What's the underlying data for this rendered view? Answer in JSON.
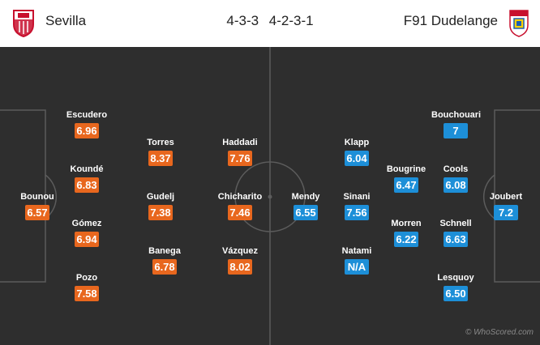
{
  "header": {
    "home_team": "Sevilla",
    "home_formation": "4-3-3",
    "away_formation": "4-2-3-1",
    "away_team": "F91 Dudelange"
  },
  "home_players": [
    {
      "name": "Escudero",
      "rating": "6.96"
    },
    {
      "name": "Koundé",
      "rating": "6.83"
    },
    {
      "name": "Bounou",
      "rating": "6.57"
    },
    {
      "name": "Gómez",
      "rating": "6.94"
    },
    {
      "name": "Pozo",
      "rating": "7.58"
    },
    {
      "name": "Torres",
      "rating": "8.37"
    },
    {
      "name": "Gudelj",
      "rating": "7.38"
    },
    {
      "name": "Banega",
      "rating": "6.78"
    },
    {
      "name": "Haddadi",
      "rating": "7.76"
    },
    {
      "name": "Chicharito",
      "rating": "7.46"
    },
    {
      "name": "Vázquez",
      "rating": "8.02"
    }
  ],
  "away_players": [
    {
      "name": "Mendy",
      "rating": "6.55"
    },
    {
      "name": "Klapp",
      "rating": "6.04"
    },
    {
      "name": "Sinani",
      "rating": "7.56"
    },
    {
      "name": "Natami",
      "rating": "N/A"
    },
    {
      "name": "Bougrine",
      "rating": "6.47"
    },
    {
      "name": "Morren",
      "rating": "6.22"
    },
    {
      "name": "Bouchouari",
      "rating": "7"
    },
    {
      "name": "Cools",
      "rating": "6.08"
    },
    {
      "name": "Schnell",
      "rating": "6.63"
    },
    {
      "name": "Lesquoy",
      "rating": "6.50"
    },
    {
      "name": "Joubert",
      "rating": "7.2"
    }
  ],
  "watermark": "© WhoScored.com",
  "colors": {
    "pitch": "#2e2e2e",
    "lines": "#5c5c5c",
    "home_rating": "#e8671e",
    "away_rating": "#1d8fd8"
  },
  "icons": {
    "home_logo": "sevilla-crest-icon",
    "away_logo": "dudelange-crest-icon"
  }
}
